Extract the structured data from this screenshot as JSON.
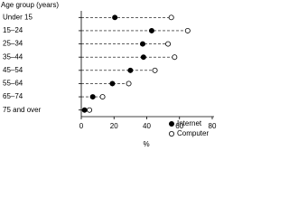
{
  "chart_data": {
    "type": "dot",
    "y_axis_label": "Age group (years)",
    "x_axis_label": "%",
    "categories": [
      "Under 15",
      "15–24",
      "25–34",
      "35–44",
      "45–54",
      "55–64",
      "65–74",
      "75 and over"
    ],
    "series": [
      {
        "name": "Internet",
        "color": "#000000",
        "marker": "filled",
        "values": [
          20.5,
          43,
          37.5,
          38,
          30,
          19,
          7,
          2
        ]
      },
      {
        "name": "Computer",
        "color": "#000000",
        "marker": "open",
        "values": [
          55,
          65,
          53,
          57,
          45,
          29,
          13,
          5
        ]
      }
    ],
    "xlim": [
      0,
      80
    ],
    "xticks": [
      0,
      20,
      40,
      60,
      80
    ],
    "legend": "lower right"
  }
}
